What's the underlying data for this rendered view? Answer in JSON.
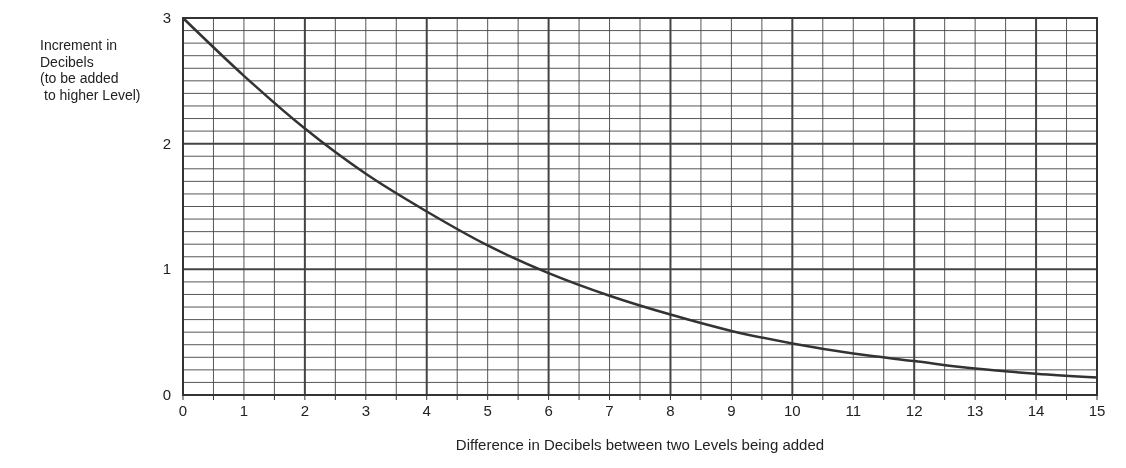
{
  "chart_data": {
    "type": "line",
    "xlabel": "Difference in Decibels between two Levels being added",
    "ylabel": "Increment in\nDecibels\n(to be added\nto higher Level)",
    "x": [
      0,
      1,
      2,
      3,
      4,
      5,
      6,
      7,
      8,
      9,
      10,
      11,
      12,
      13,
      14,
      15
    ],
    "series": [
      {
        "color": "#333333",
        "values": [
          3,
          2.54,
          2.12,
          1.76,
          1.46,
          1.19,
          0.97,
          0.79,
          0.64,
          0.51,
          0.41,
          0.33,
          0.27,
          0.21,
          0.17,
          0.14
        ]
      }
    ],
    "xlim": [
      0,
      15
    ],
    "ylim": [
      0,
      3
    ],
    "xticks": [
      0,
      {
        "value": 0.5,
        "label": null
      },
      1,
      {
        "value": 1.5,
        "label": null
      },
      2,
      {
        "value": 2.5,
        "label": null
      },
      3,
      {
        "value": 3.5,
        "label": null
      },
      4,
      {
        "value": 4.5,
        "label": null
      },
      5,
      {
        "value": 5.5,
        "label": null
      },
      6,
      {
        "value": 6.5,
        "label": null
      },
      7,
      {
        "value": 7.5,
        "label": null
      },
      8,
      {
        "value": 8.5,
        "label": null
      },
      9,
      {
        "value": 9.5,
        "label": null
      },
      10,
      {
        "value": 10.5,
        "label": null
      },
      11,
      {
        "value": 11.5,
        "label": null
      },
      12,
      {
        "value": 12.5,
        "label": null
      },
      13,
      {
        "value": 13.5,
        "label": null
      },
      14,
      {
        "value": 14.5,
        "label": null
      },
      15
    ],
    "yticks": [
      0,
      {
        "value": 0.1,
        "label": null
      },
      {
        "value": 0.2,
        "label": null
      },
      {
        "value": 0.3,
        "label": null
      },
      {
        "value": 0.4,
        "label": null
      },
      {
        "value": 0.5,
        "label": null
      },
      {
        "value": 0.6,
        "label": null
      },
      {
        "value": 0.7,
        "label": null
      },
      {
        "value": 0.8,
        "label": null
      },
      {
        "value": 0.9,
        "label": null
      },
      1,
      {
        "value": 1.1,
        "label": null
      },
      {
        "value": 1.2,
        "label": null
      },
      {
        "value": 1.3,
        "label": null
      },
      {
        "value": 1.4,
        "label": null
      },
      {
        "value": 1.5,
        "label": null
      },
      {
        "value": 1.6,
        "label": null
      },
      {
        "value": 1.7,
        "label": null
      },
      {
        "value": 1.8,
        "label": null
      },
      {
        "value": 1.9,
        "label": null
      },
      2,
      {
        "value": 2.1,
        "label": null
      },
      {
        "value": 2.2,
        "label": null
      },
      {
        "value": 2.3,
        "label": null
      },
      {
        "value": 2.4,
        "label": null
      },
      {
        "value": 2.5,
        "label": null
      },
      {
        "value": 2.6,
        "label": null
      },
      {
        "value": 2.7,
        "label": null
      },
      {
        "value": 2.8,
        "label": null
      },
      {
        "value": 2.9,
        "label": null
      },
      3
    ],
    "grid": true,
    "marker": "none",
    "line_style": "solid"
  }
}
